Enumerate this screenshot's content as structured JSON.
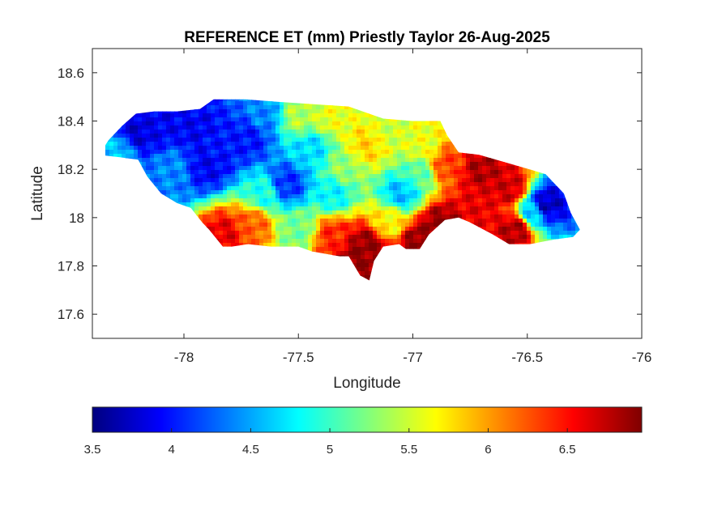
{
  "figure": {
    "title": "REFERENCE ET (mm) Priestly Taylor 26-Aug-2025"
  },
  "map": {
    "xlabel": "Longitude",
    "ylabel": "Latitude",
    "xlim": [
      -78.4,
      -76
    ],
    "ylim": [
      17.5,
      18.7
    ],
    "xticks": [
      "-78",
      "-77.5",
      "-77",
      "-76.5",
      "-76"
    ],
    "xtick_values": [
      -78,
      -77.5,
      -77,
      -76.5,
      -76
    ],
    "yticks": [
      "17.6",
      "17.8",
      "18",
      "18.2",
      "18.4",
      "18.6"
    ],
    "ytick_values": [
      17.6,
      17.8,
      18.0,
      18.2,
      18.4,
      18.6
    ],
    "region_outline_lonlat": [
      [
        -78.37,
        18.26
      ],
      [
        -78.33,
        18.32
      ],
      [
        -78.27,
        18.38
      ],
      [
        -78.21,
        18.43
      ],
      [
        -78.13,
        18.44
      ],
      [
        -78.03,
        18.44
      ],
      [
        -77.93,
        18.45
      ],
      [
        -77.87,
        18.49
      ],
      [
        -77.73,
        18.49
      ],
      [
        -77.6,
        18.48
      ],
      [
        -77.44,
        18.47
      ],
      [
        -77.28,
        18.46
      ],
      [
        -77.13,
        18.41
      ],
      [
        -77.0,
        18.4
      ],
      [
        -76.88,
        18.4
      ],
      [
        -76.85,
        18.34
      ],
      [
        -76.8,
        18.27
      ],
      [
        -76.71,
        18.26
      ],
      [
        -76.6,
        18.23
      ],
      [
        -76.49,
        18.2
      ],
      [
        -76.42,
        18.18
      ],
      [
        -76.34,
        18.1
      ],
      [
        -76.31,
        18.02
      ],
      [
        -76.27,
        17.95
      ],
      [
        -76.3,
        17.92
      ],
      [
        -76.38,
        17.91
      ],
      [
        -76.49,
        17.89
      ],
      [
        -76.58,
        17.89
      ],
      [
        -76.65,
        17.93
      ],
      [
        -76.75,
        17.98
      ],
      [
        -76.8,
        18.0
      ],
      [
        -76.86,
        17.99
      ],
      [
        -76.93,
        17.93
      ],
      [
        -76.97,
        17.87
      ],
      [
        -77.03,
        17.87
      ],
      [
        -77.06,
        17.89
      ],
      [
        -77.13,
        17.88
      ],
      [
        -77.17,
        17.82
      ],
      [
        -77.19,
        17.74
      ],
      [
        -77.23,
        17.76
      ],
      [
        -77.28,
        17.84
      ],
      [
        -77.32,
        17.84
      ],
      [
        -77.44,
        17.86
      ],
      [
        -77.5,
        17.88
      ],
      [
        -77.62,
        17.88
      ],
      [
        -77.72,
        17.89
      ],
      [
        -77.79,
        17.88
      ],
      [
        -77.83,
        17.88
      ],
      [
        -77.89,
        17.95
      ],
      [
        -77.92,
        17.98
      ],
      [
        -77.97,
        18.04
      ],
      [
        -78.03,
        18.06
      ],
      [
        -78.1,
        18.1
      ],
      [
        -78.16,
        18.17
      ],
      [
        -78.2,
        18.24
      ],
      [
        -78.28,
        18.25
      ],
      [
        -78.37,
        18.26
      ]
    ],
    "value_hotspots_lonlat_mm": [
      [
        -78.2,
        18.36,
        3.8
      ],
      [
        -78.12,
        18.38,
        3.9
      ],
      [
        -77.95,
        18.37,
        3.9
      ],
      [
        -77.85,
        18.3,
        4.0
      ],
      [
        -77.9,
        18.22,
        3.9
      ],
      [
        -77.72,
        18.33,
        4.0
      ],
      [
        -77.55,
        18.14,
        4.1
      ],
      [
        -78.05,
        18.2,
        4.4
      ],
      [
        -78.3,
        18.27,
        4.6
      ],
      [
        -77.65,
        18.42,
        4.4
      ],
      [
        -77.5,
        18.42,
        5.4
      ],
      [
        -77.35,
        18.42,
        5.6
      ],
      [
        -77.2,
        18.3,
        5.8
      ],
      [
        -77.1,
        18.36,
        5.5
      ],
      [
        -76.95,
        18.3,
        5.6
      ],
      [
        -76.85,
        18.22,
        6.3
      ],
      [
        -76.7,
        18.2,
        6.8
      ],
      [
        -76.58,
        18.12,
        6.7
      ],
      [
        -76.42,
        18.05,
        3.7
      ],
      [
        -76.47,
        18.02,
        4.6
      ],
      [
        -76.55,
        17.95,
        6.8
      ],
      [
        -76.72,
        18.04,
        6.6
      ],
      [
        -76.88,
        17.97,
        6.9
      ],
      [
        -76.98,
        17.9,
        6.9
      ],
      [
        -77.2,
        17.88,
        6.9
      ],
      [
        -77.25,
        17.83,
        6.9
      ],
      [
        -77.35,
        17.92,
        6.4
      ],
      [
        -77.5,
        17.95,
        5.2
      ],
      [
        -77.7,
        17.97,
        6.2
      ],
      [
        -77.82,
        17.93,
        6.6
      ],
      [
        -77.65,
        18.1,
        4.9
      ],
      [
        -77.35,
        18.1,
        4.8
      ],
      [
        -77.05,
        18.1,
        4.6
      ],
      [
        -77.3,
        18.2,
        5.3
      ],
      [
        -76.98,
        18.18,
        5.1
      ],
      [
        -77.45,
        18.28,
        4.7
      ],
      [
        -77.1,
        17.98,
        5.7
      ]
    ]
  },
  "colorbar": {
    "colormap": "jet",
    "min": 3.5,
    "max": 6.97,
    "ticks": [
      "3.5",
      "4",
      "4.5",
      "5",
      "5.5",
      "6",
      "6.5"
    ],
    "tick_values": [
      3.5,
      4.0,
      4.5,
      5.0,
      5.5,
      6.0,
      6.5
    ]
  },
  "colors": {
    "jet_stops": [
      "#00007f",
      "#0000ff",
      "#007fff",
      "#00ffff",
      "#7fff7f",
      "#ffff00",
      "#ff7f00",
      "#ff0000",
      "#7f0000"
    ],
    "axis": "#262626",
    "background": "#ffffff"
  }
}
